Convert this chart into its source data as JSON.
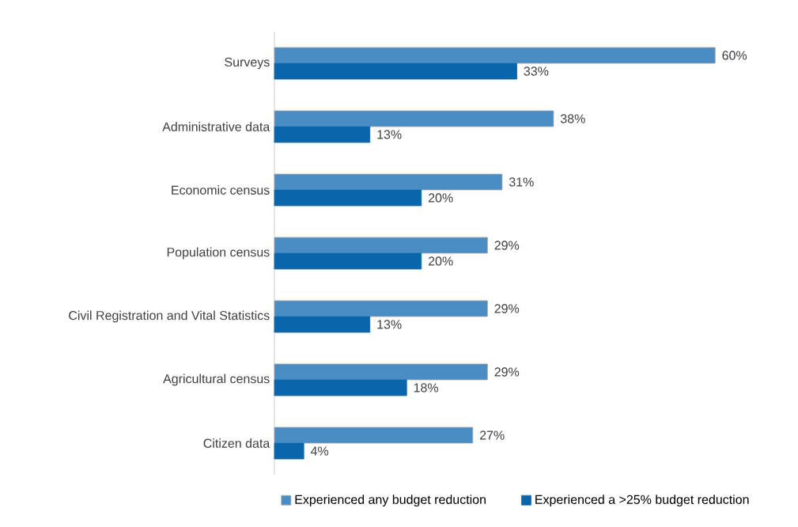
{
  "chart_data": {
    "type": "bar",
    "orientation": "horizontal",
    "categories": [
      "Surveys",
      "Administrative data",
      "Economic census",
      "Population census",
      "Civil Registration and Vital Statistics",
      "Agricultural census",
      "Citizen data"
    ],
    "series": [
      {
        "name": "Experienced any budget reduction",
        "color": "#4a8cc4",
        "values": [
          60,
          38,
          31,
          29,
          29,
          29,
          27
        ],
        "value_labels": [
          "60%",
          "38%",
          "31%",
          "29%",
          "29%",
          "29%",
          "27%"
        ]
      },
      {
        "name": "Experienced a >25% budget reduction",
        "color": "#0b65aa",
        "values": [
          33,
          13,
          20,
          20,
          13,
          18,
          4
        ],
        "value_labels": [
          "33%",
          "13%",
          "20%",
          "20%",
          "13%",
          "18%",
          "4%"
        ]
      }
    ],
    "legend": "bottom"
  }
}
